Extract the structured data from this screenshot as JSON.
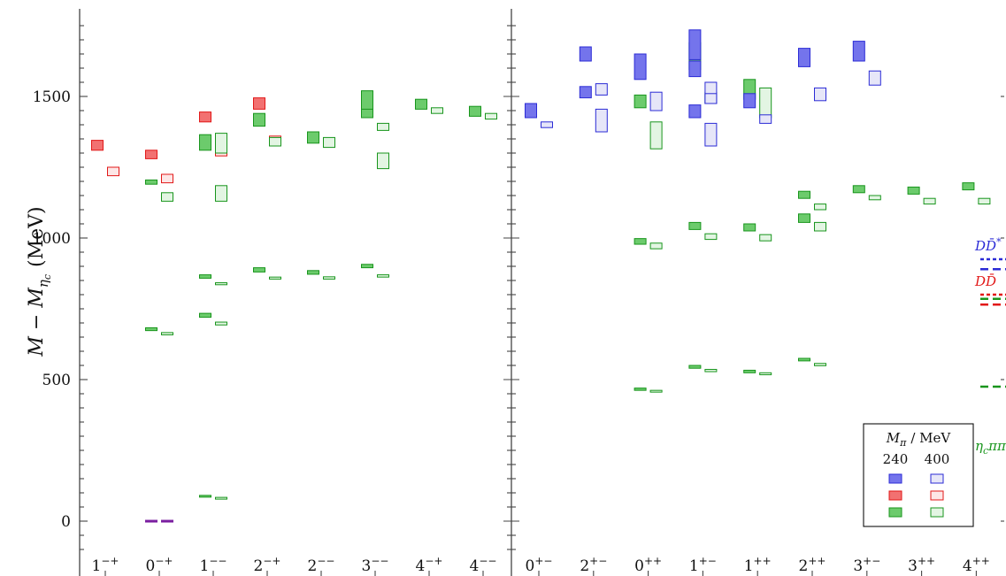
{
  "chart_data": {
    "type": "scatter",
    "ylabel": "M − M",
    "ylabel_sub": "η",
    "ylabel_subsub": "c",
    "ylabel_unit": "(MeV)",
    "ylim": [
      -130,
      1800
    ],
    "yticks": [
      0,
      500,
      1000,
      1500
    ],
    "channels_left": [
      {
        "label": "1",
        "sup": "−+"
      },
      {
        "label": "0",
        "sup": "−+"
      },
      {
        "label": "1",
        "sup": "−−"
      },
      {
        "label": "2",
        "sup": "−+"
      },
      {
        "label": "2",
        "sup": "−−"
      },
      {
        "label": "3",
        "sup": "−−"
      },
      {
        "label": "4",
        "sup": "−+"
      },
      {
        "label": "4",
        "sup": "−−"
      }
    ],
    "channels_right": [
      {
        "label": "0",
        "sup": "+−"
      },
      {
        "label": "2",
        "sup": "+−"
      },
      {
        "label": "0",
        "sup": "++"
      },
      {
        "label": "1",
        "sup": "+−"
      },
      {
        "label": "1",
        "sup": "++"
      },
      {
        "label": "2",
        "sup": "++"
      },
      {
        "label": "3",
        "sup": "+−"
      },
      {
        "label": "3",
        "sup": "++"
      },
      {
        "label": "4",
        "sup": "++"
      }
    ],
    "colors": {
      "blue": "#2b2bd6",
      "blue_fill": "#7474ec",
      "blue_light": "#e6e6f8",
      "red": "#e21818",
      "red_fill": "#f27171",
      "red_light": "#fde6e6",
      "green": "#18951c",
      "green_fill": "#6ccb6c",
      "green_light": "#e3f5e3",
      "purple": "#7a1fa0"
    },
    "series": [
      {
        "m": 240,
        "color": "red",
        "points": [
          {
            "panel": "L",
            "ch": 0,
            "lo": 1310,
            "hi": 1345
          },
          {
            "panel": "L",
            "ch": 1,
            "lo": 1280,
            "hi": 1310
          },
          {
            "panel": "L",
            "ch": 2,
            "lo": 1410,
            "hi": 1445
          },
          {
            "panel": "L",
            "ch": 3,
            "lo": 1455,
            "hi": 1495
          }
        ]
      },
      {
        "m": 400,
        "color": "red",
        "points": [
          {
            "panel": "L",
            "ch": 0,
            "lo": 1220,
            "hi": 1250
          },
          {
            "panel": "L",
            "ch": 1,
            "lo": 1195,
            "hi": 1225
          },
          {
            "panel": "L",
            "ch": 2,
            "lo": 1290,
            "hi": 1315
          },
          {
            "panel": "L",
            "ch": 3,
            "lo": 1335,
            "hi": 1360
          }
        ]
      },
      {
        "m": 240,
        "color": "green",
        "points": [
          {
            "panel": "L",
            "ch": 1,
            "lo": 1190,
            "hi": 1205
          },
          {
            "panel": "L",
            "ch": 1,
            "lo": 673,
            "hi": 683
          },
          {
            "panel": "L",
            "ch": 2,
            "lo": 1310,
            "hi": 1365
          },
          {
            "panel": "L",
            "ch": 2,
            "lo": 858,
            "hi": 870
          },
          {
            "panel": "L",
            "ch": 2,
            "lo": 720,
            "hi": 734
          },
          {
            "panel": "L",
            "ch": 2,
            "lo": 85,
            "hi": 91
          },
          {
            "panel": "L",
            "ch": 3,
            "lo": 1395,
            "hi": 1440
          },
          {
            "panel": "L",
            "ch": 3,
            "lo": 880,
            "hi": 895
          },
          {
            "panel": "L",
            "ch": 4,
            "lo": 1335,
            "hi": 1375
          },
          {
            "panel": "L",
            "ch": 4,
            "lo": 872,
            "hi": 885
          },
          {
            "panel": "L",
            "ch": 5,
            "lo": 1425,
            "hi": 1460
          },
          {
            "panel": "L",
            "ch": 5,
            "lo": 1455,
            "hi": 1520
          },
          {
            "panel": "L",
            "ch": 5,
            "lo": 895,
            "hi": 907
          },
          {
            "panel": "L",
            "ch": 6,
            "lo": 1455,
            "hi": 1490
          },
          {
            "panel": "L",
            "ch": 7,
            "lo": 1430,
            "hi": 1465
          },
          {
            "panel": "R",
            "ch": 2,
            "lo": 1460,
            "hi": 1505
          },
          {
            "panel": "R",
            "ch": 2,
            "lo": 978,
            "hi": 998
          },
          {
            "panel": "R",
            "ch": 2,
            "lo": 462,
            "hi": 470
          },
          {
            "panel": "R",
            "ch": 3,
            "lo": 1595,
            "hi": 1690
          },
          {
            "panel": "R",
            "ch": 3,
            "lo": 1030,
            "hi": 1055
          },
          {
            "panel": "R",
            "ch": 3,
            "lo": 540,
            "hi": 550
          },
          {
            "panel": "R",
            "ch": 4,
            "lo": 1490,
            "hi": 1560
          },
          {
            "panel": "R",
            "ch": 4,
            "lo": 1025,
            "hi": 1050
          },
          {
            "panel": "R",
            "ch": 4,
            "lo": 524,
            "hi": 533
          },
          {
            "panel": "R",
            "ch": 5,
            "lo": 1140,
            "hi": 1165
          },
          {
            "panel": "R",
            "ch": 5,
            "lo": 1055,
            "hi": 1085
          },
          {
            "panel": "R",
            "ch": 5,
            "lo": 566,
            "hi": 575
          },
          {
            "panel": "R",
            "ch": 6,
            "lo": 1160,
            "hi": 1185
          },
          {
            "panel": "R",
            "ch": 7,
            "lo": 1155,
            "hi": 1180
          },
          {
            "panel": "R",
            "ch": 8,
            "lo": 1170,
            "hi": 1195
          }
        ]
      },
      {
        "m": 400,
        "color": "green",
        "points": [
          {
            "panel": "L",
            "ch": 1,
            "lo": 1130,
            "hi": 1160
          },
          {
            "panel": "L",
            "ch": 1,
            "lo": 658,
            "hi": 666
          },
          {
            "panel": "L",
            "ch": 2,
            "lo": 1300,
            "hi": 1370
          },
          {
            "panel": "L",
            "ch": 2,
            "lo": 1130,
            "hi": 1185
          },
          {
            "panel": "L",
            "ch": 2,
            "lo": 835,
            "hi": 842
          },
          {
            "panel": "L",
            "ch": 2,
            "lo": 693,
            "hi": 703
          },
          {
            "panel": "L",
            "ch": 2,
            "lo": 78,
            "hi": 84
          },
          {
            "panel": "L",
            "ch": 3,
            "lo": 1325,
            "hi": 1355
          },
          {
            "panel": "L",
            "ch": 3,
            "lo": 855,
            "hi": 862
          },
          {
            "panel": "L",
            "ch": 4,
            "lo": 1320,
            "hi": 1355
          },
          {
            "panel": "L",
            "ch": 4,
            "lo": 855,
            "hi": 863
          },
          {
            "panel": "L",
            "ch": 5,
            "lo": 1380,
            "hi": 1405
          },
          {
            "panel": "L",
            "ch": 5,
            "lo": 1245,
            "hi": 1300
          },
          {
            "panel": "L",
            "ch": 5,
            "lo": 862,
            "hi": 870
          },
          {
            "panel": "L",
            "ch": 6,
            "lo": 1440,
            "hi": 1460
          },
          {
            "panel": "L",
            "ch": 7,
            "lo": 1420,
            "hi": 1440
          },
          {
            "panel": "R",
            "ch": 2,
            "lo": 1315,
            "hi": 1410
          },
          {
            "panel": "R",
            "ch": 2,
            "lo": 962,
            "hi": 982
          },
          {
            "panel": "R",
            "ch": 2,
            "lo": 456,
            "hi": 462
          },
          {
            "panel": "R",
            "ch": 3,
            "lo": 1475,
            "hi": 1515
          },
          {
            "panel": "R",
            "ch": 3,
            "lo": 995,
            "hi": 1015
          },
          {
            "panel": "R",
            "ch": 3,
            "lo": 528,
            "hi": 536
          },
          {
            "panel": "R",
            "ch": 4,
            "lo": 1425,
            "hi": 1530
          },
          {
            "panel": "R",
            "ch": 4,
            "lo": 990,
            "hi": 1012
          },
          {
            "panel": "R",
            "ch": 4,
            "lo": 517,
            "hi": 524
          },
          {
            "panel": "R",
            "ch": 5,
            "lo": 1100,
            "hi": 1120
          },
          {
            "panel": "R",
            "ch": 5,
            "lo": 1025,
            "hi": 1055
          },
          {
            "panel": "R",
            "ch": 5,
            "lo": 549,
            "hi": 557
          },
          {
            "panel": "R",
            "ch": 6,
            "lo": 1135,
            "hi": 1150
          },
          {
            "panel": "R",
            "ch": 7,
            "lo": 1120,
            "hi": 1140
          },
          {
            "panel": "R",
            "ch": 8,
            "lo": 1120,
            "hi": 1140
          }
        ]
      },
      {
        "m": 240,
        "color": "blue",
        "points": [
          {
            "panel": "R",
            "ch": 0,
            "lo": 1425,
            "hi": 1475
          },
          {
            "panel": "R",
            "ch": 1,
            "lo": 1625,
            "hi": 1675
          },
          {
            "panel": "R",
            "ch": 1,
            "lo": 1495,
            "hi": 1535
          },
          {
            "panel": "R",
            "ch": 2,
            "lo": 1560,
            "hi": 1650
          },
          {
            "panel": "R",
            "ch": 3,
            "lo": 1630,
            "hi": 1735
          },
          {
            "panel": "R",
            "ch": 3,
            "lo": 1570,
            "hi": 1625
          },
          {
            "panel": "R",
            "ch": 3,
            "lo": 1425,
            "hi": 1470
          },
          {
            "panel": "R",
            "ch": 4,
            "lo": 1460,
            "hi": 1510
          },
          {
            "panel": "R",
            "ch": 5,
            "lo": 1605,
            "hi": 1670
          },
          {
            "panel": "R",
            "ch": 6,
            "lo": 1625,
            "hi": 1695
          }
        ]
      },
      {
        "m": 400,
        "color": "blue",
        "points": [
          {
            "panel": "R",
            "ch": 0,
            "lo": 1390,
            "hi": 1410
          },
          {
            "panel": "R",
            "ch": 1,
            "lo": 1505,
            "hi": 1545
          },
          {
            "panel": "R",
            "ch": 1,
            "lo": 1375,
            "hi": 1455
          },
          {
            "panel": "R",
            "ch": 2,
            "lo": 1450,
            "hi": 1515
          },
          {
            "panel": "R",
            "ch": 3,
            "lo": 1475,
            "hi": 1550
          },
          {
            "panel": "R",
            "ch": 3,
            "lo": 1475,
            "hi": 1510
          },
          {
            "panel": "R",
            "ch": 3,
            "lo": 1325,
            "hi": 1405
          },
          {
            "panel": "R",
            "ch": 4,
            "lo": 1405,
            "hi": 1435
          },
          {
            "panel": "R",
            "ch": 5,
            "lo": 1485,
            "hi": 1530
          },
          {
            "panel": "R",
            "ch": 6,
            "lo": 1540,
            "hi": 1590
          }
        ]
      },
      {
        "m": 240,
        "color": "purple",
        "points": [
          {
            "panel": "L",
            "ch": 1,
            "lo": -3,
            "hi": 3
          }
        ]
      },
      {
        "m": 400,
        "color": "purple",
        "points": [
          {
            "panel": "L",
            "ch": 1,
            "lo": -3,
            "hi": 3
          }
        ]
      }
    ],
    "thresholds": [
      {
        "name": "D",
        "bar": "D̄",
        "star": "*",
        "color": "blue",
        "values": [
          925,
          890
        ]
      },
      {
        "name": "D",
        "bar": "D̄",
        "star": "",
        "color": "red",
        "values": [
          800,
          765
        ]
      },
      {
        "name": "D",
        "bar": "D̄",
        "star": "",
        "color": "green",
        "values": [
          785
        ]
      },
      {
        "name": "η",
        "sub": "c",
        "tail": "ππ",
        "color": "green",
        "values": [
          475
        ]
      }
    ],
    "legend": {
      "title": "M",
      "title_sub": "π",
      "title_unit": "/ MeV",
      "columns": [
        "240",
        "400"
      ],
      "placement": "bottom-right"
    }
  }
}
